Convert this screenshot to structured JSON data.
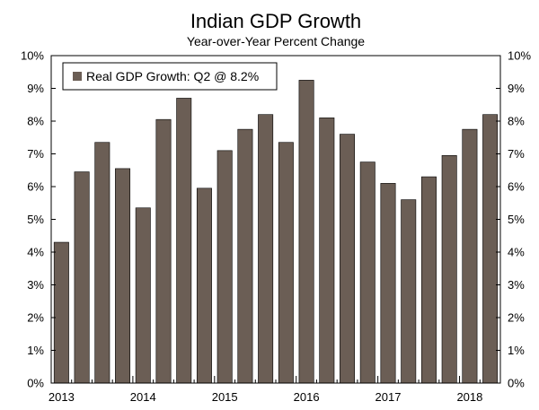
{
  "chart_data": {
    "type": "bar",
    "title": "Indian GDP Growth",
    "subtitle": "Year-over-Year Percent Change",
    "xlabel": "",
    "ylabel": "",
    "ylim": [
      0,
      10
    ],
    "y_tick_labels": [
      "0%",
      "1%",
      "2%",
      "3%",
      "4%",
      "5%",
      "6%",
      "7%",
      "8%",
      "9%",
      "10%"
    ],
    "x_tick_labels": [
      "2013",
      "2014",
      "2015",
      "2016",
      "2017",
      "2018"
    ],
    "legend_position": "top-left",
    "grid": false,
    "bar_color": "#6b5e55",
    "categories": [
      "2013 Q1",
      "2013 Q2",
      "2013 Q3",
      "2013 Q4",
      "2014 Q1",
      "2014 Q2",
      "2014 Q3",
      "2014 Q4",
      "2015 Q1",
      "2015 Q2",
      "2015 Q3",
      "2015 Q4",
      "2016 Q1",
      "2016 Q2",
      "2016 Q3",
      "2016 Q4",
      "2017 Q1",
      "2017 Q2",
      "2017 Q3",
      "2017 Q4",
      "2018 Q1",
      "2018 Q2"
    ],
    "series": [
      {
        "name": "Real GDP Growth: Q2 @ 8.2%",
        "values": [
          4.3,
          6.45,
          7.35,
          6.55,
          5.35,
          8.05,
          8.7,
          5.95,
          7.1,
          7.75,
          8.2,
          7.35,
          9.25,
          8.1,
          7.6,
          6.75,
          6.1,
          5.6,
          6.3,
          6.95,
          7.75,
          8.2
        ]
      }
    ]
  }
}
